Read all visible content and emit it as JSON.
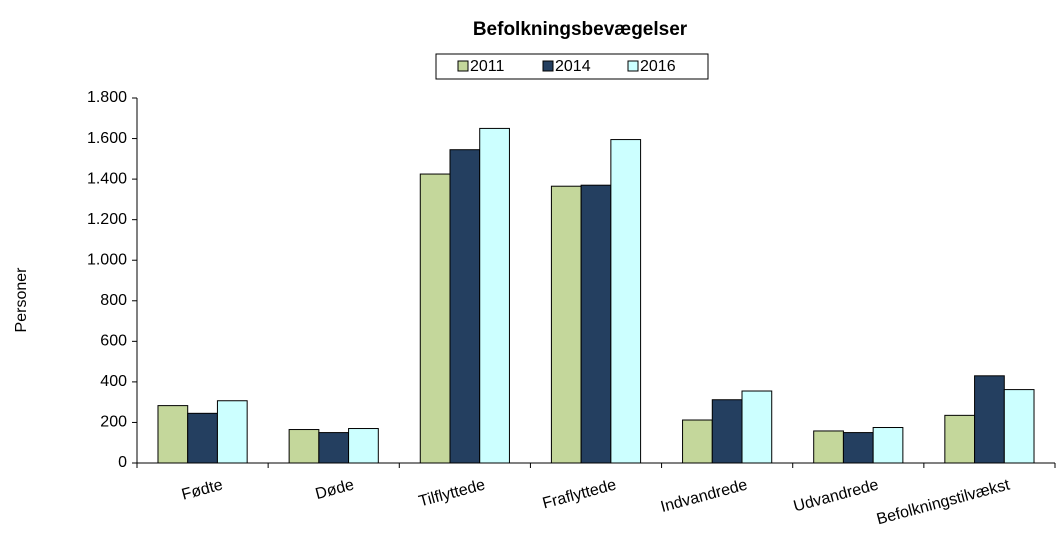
{
  "chart_data": {
    "type": "bar",
    "title": "Befolkningsbevægelser",
    "y_label": "Personer",
    "categories": [
      "Fødte",
      "Døde",
      "Tilflyttede",
      "Fraflyttede",
      "Indvandrede",
      "Udvandrede",
      "Befolkningstilvækst"
    ],
    "series": [
      {
        "name": "2011",
        "color": "#c4d79b",
        "values": [
          283,
          165,
          1425,
          1365,
          212,
          158,
          235
        ]
      },
      {
        "name": "2014",
        "color": "#243f60",
        "values": [
          245,
          150,
          1545,
          1370,
          312,
          150,
          430
        ]
      },
      {
        "name": "2016",
        "color": "#ccffff",
        "values": [
          307,
          170,
          1650,
          1595,
          355,
          175,
          362
        ]
      }
    ],
    "ylim": [
      0,
      1800
    ],
    "yticks": [
      0,
      200,
      400,
      600,
      800,
      {
        "value": 1000,
        "label": "1.000"
      },
      {
        "value": 1200,
        "label": "1.200"
      },
      {
        "value": 1400,
        "label": "1.400"
      },
      {
        "value": 1600,
        "label": "1.600"
      },
      {
        "value": 1800,
        "label": "1.800"
      }
    ],
    "legend": "top"
  }
}
